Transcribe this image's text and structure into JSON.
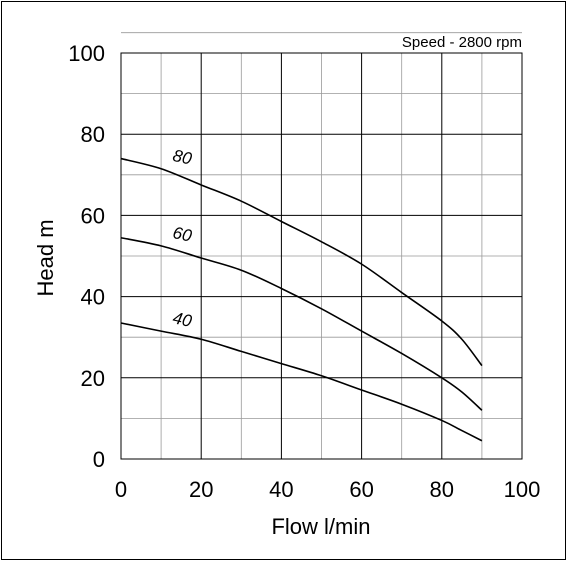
{
  "chart_data": {
    "type": "line",
    "title": "",
    "annotation": "Speed - 2800 rpm",
    "xlabel": "Flow l/min",
    "ylabel": "Head m",
    "xlim": [
      0,
      100
    ],
    "ylim": [
      0,
      100
    ],
    "x_ticks": [
      "0",
      "20",
      "40",
      "60",
      "80",
      "100"
    ],
    "y_ticks": [
      "0",
      "20",
      "40",
      "60",
      "80",
      "100"
    ],
    "grid": true,
    "grid_minor_step": 10,
    "series": [
      {
        "name": "80",
        "x": [
          0,
          10,
          20,
          30,
          40,
          50,
          60,
          70,
          80,
          85,
          90
        ],
        "y": [
          74,
          71.5,
          67.5,
          63.5,
          58.5,
          53.5,
          48,
          41,
          34,
          29.5,
          23
        ]
      },
      {
        "name": "60",
        "x": [
          0,
          10,
          20,
          30,
          40,
          50,
          60,
          70,
          80,
          85,
          90
        ],
        "y": [
          54.5,
          52.5,
          49.5,
          46.5,
          42,
          37,
          31.5,
          26,
          20,
          16.5,
          12
        ]
      },
      {
        "name": "40",
        "x": [
          0,
          10,
          20,
          30,
          40,
          50,
          60,
          70,
          80,
          85,
          90
        ],
        "y": [
          33.5,
          31.5,
          29.5,
          26.5,
          23.5,
          20.5,
          17,
          13.5,
          9.5,
          7,
          4.5
        ]
      }
    ],
    "curve_labels": [
      {
        "text": "80",
        "x": 15,
        "y": 73
      },
      {
        "text": "60",
        "x": 15,
        "y": 54
      },
      {
        "text": "40",
        "x": 15,
        "y": 33
      }
    ]
  }
}
